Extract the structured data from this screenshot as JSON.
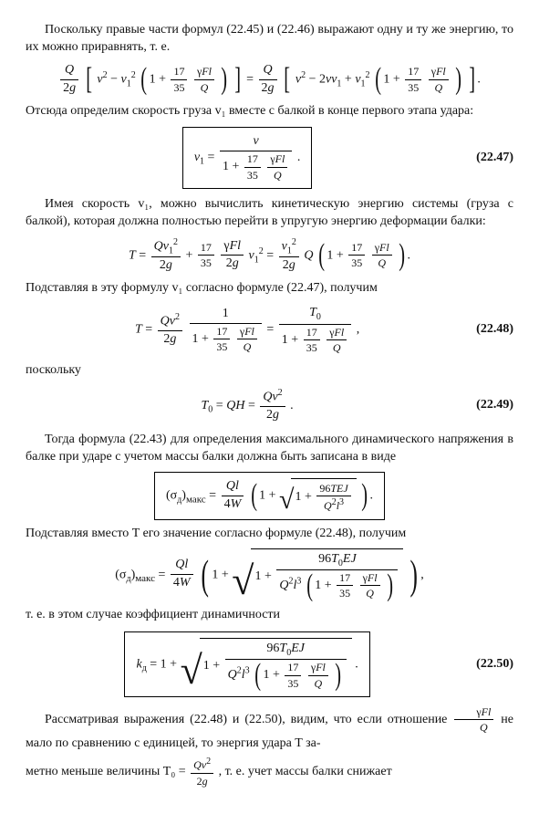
{
  "p1": "Поскольку правые части формул (22.45) и (22.46) выражают одну и ту же энергию, то их можно приравнять, т. е.",
  "p2": "Отсюда определим скорость груза v₁ вместе с балкой в конце первого этапа удара:",
  "eqnum_2247": "(22.47)",
  "p3": "Имея скорость v₁, можно вычислить кинетическую энергию системы (груза с балкой), которая должна полностью перейти в упругую энергию деформации балки:",
  "p4": "Подставляя в эту формулу v₁ согласно формуле (22.47), получим",
  "eqnum_2248": "(22.48)",
  "p5": "поскольку",
  "eqnum_2249": "(22.49)",
  "p6": "Тогда формула (22.43) для определения максимального динамического напряжения в балке при ударе с учетом массы балки должна быть записана в виде",
  "p7": "Подставляя вместо T его значение согласно формуле (22.48), получим",
  "p8": "т. е. в этом случае коэффициент динамичности",
  "eqnum_2250": "(22.50)",
  "p9a": "Рассматривая выражения (22.48) и (22.50), видим, что если отношение ",
  "p9b": " не мало по сравнению с единицей, то энергия удара T за-",
  "p10a": "метно меньше величины T₀ = ",
  "p10b": ", т. е. учет массы балки снижает",
  "styling": {
    "font_family": "Georgia, Times New Roman, serif",
    "font_size_pt": 14,
    "text_color": "#111111",
    "background_color": "#ffffff",
    "box_border": "1px solid #000000"
  }
}
